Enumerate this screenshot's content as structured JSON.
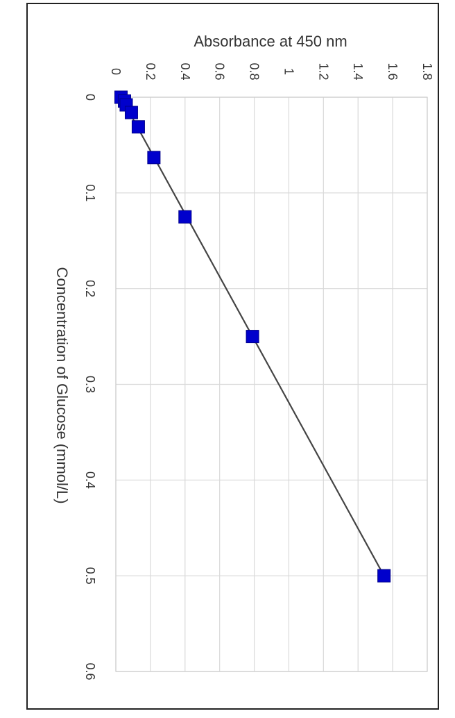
{
  "chart_data": {
    "type": "scatter",
    "orientation": "rotated-90-clockwise",
    "xlabel": "Concentration of Glucose (mmol/L)",
    "ylabel": "Absorbance at 450 nm",
    "xlim": [
      0,
      0.6
    ],
    "ylim": [
      0,
      1.8
    ],
    "x_ticks": [
      0,
      0.1,
      0.2,
      0.3,
      0.4,
      0.5,
      0.6
    ],
    "x_tick_labels": [
      "0",
      "0.1",
      "0.2",
      "0.3",
      "0.4",
      "0.5",
      "0.6"
    ],
    "y_ticks": [
      0,
      0.2,
      0.4,
      0.6,
      0.8,
      1,
      1.2,
      1.4,
      1.6,
      1.8
    ],
    "y_tick_labels": [
      "0",
      "0.2",
      "0.4",
      "0.6",
      "0.8",
      "1",
      "1.2",
      "1.4",
      "1.6",
      "1.8"
    ],
    "grid": true,
    "series": [
      {
        "marker": "square",
        "color": "#0000cc",
        "x": [
          0,
          0.004,
          0.008,
          0.016,
          0.031,
          0.063,
          0.125,
          0.25,
          0.5
        ],
        "y": [
          0.03,
          0.05,
          0.06,
          0.09,
          0.13,
          0.22,
          0.4,
          0.79,
          1.55
        ]
      }
    ],
    "trendline": {
      "color": "#444444",
      "x": [
        0,
        0.5
      ],
      "y": [
        0.03,
        1.55
      ]
    },
    "legend": "none"
  }
}
